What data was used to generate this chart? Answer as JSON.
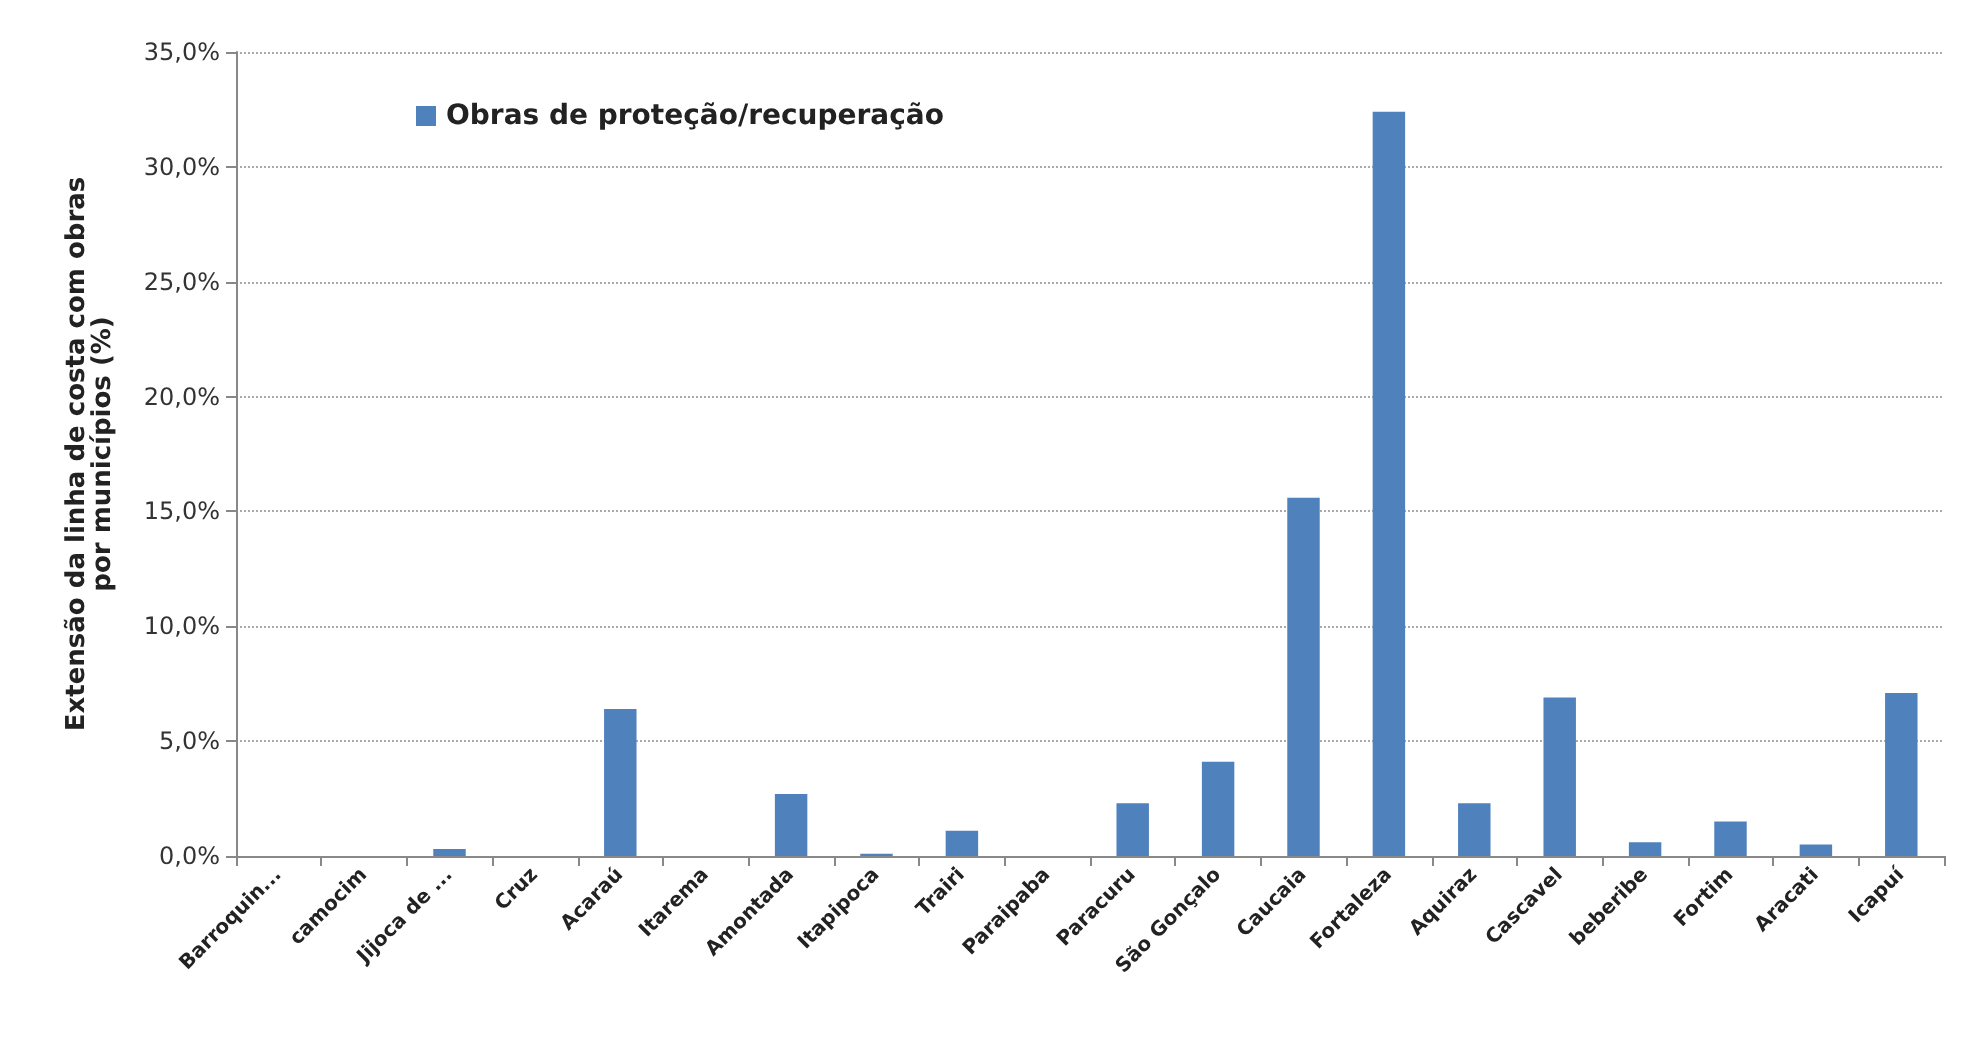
{
  "chart_data": {
    "type": "bar",
    "ylabel": "Extensão da linha de costa com obras\npor municípios (%)",
    "categories": [
      "Barroquin...",
      "camocim",
      "Jijoca de ...",
      "Cruz",
      "Acaraú",
      "Itarema",
      "Amontada",
      "Itapipoca",
      "Trairi",
      "Paraipaba",
      "Paracuru",
      "São Gonçalo",
      "Caucaia",
      "Fortaleza",
      "Aquiraz",
      "Cascavel",
      "beberibe",
      "Fortim",
      "Aracati",
      "Icapuí"
    ],
    "series": [
      {
        "name": "Obras de proteção/recuperação",
        "color": "#4f81bd",
        "values": [
          0,
          0,
          0.3,
          0,
          6.4,
          0,
          2.7,
          0.1,
          1.1,
          0,
          2.3,
          4.1,
          15.6,
          32.4,
          2.3,
          6.9,
          0.6,
          1.5,
          0.5,
          7.1
        ]
      }
    ],
    "ylim": [
      0,
      35
    ],
    "yticks": [
      {
        "value": 0,
        "label": "0,0%"
      },
      {
        "value": 5,
        "label": "5,0%"
      },
      {
        "value": 10,
        "label": "10,0%"
      },
      {
        "value": 15,
        "label": "15,0%"
      },
      {
        "value": 20,
        "label": "20,0%"
      },
      {
        "value": 25,
        "label": "25,0%"
      },
      {
        "value": 30,
        "label": "30,0%"
      },
      {
        "value": 35,
        "label": "35,0%"
      }
    ],
    "grid": "y",
    "legend": "top left"
  }
}
